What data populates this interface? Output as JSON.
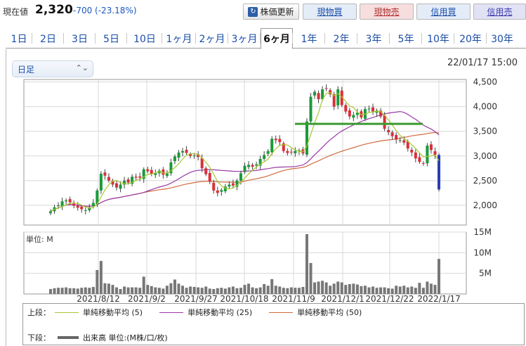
{
  "header": {
    "price_label": "現在値",
    "price_value": "2,320",
    "price_change": "-700 (-23.18%)",
    "update_button": "株価更新",
    "buy_button": "現物買",
    "sell_button": "現物売",
    "margin_buy_button": "信用買",
    "margin_sell_button": "信用売"
  },
  "tabs": [
    "1日",
    "2日",
    "3日",
    "5日",
    "10日",
    "1ヶ月",
    "2ヶ月",
    "3ヶ月",
    "6ヶ月",
    "1年",
    "2年",
    "3年",
    "5年",
    "10年",
    "20年",
    "30年"
  ],
  "active_tab": "6ヶ月",
  "period_select": {
    "value": "日足"
  },
  "date_stamp": "22/01/17 15:00",
  "colors": {
    "up": "#1a9a3a",
    "down": "#d9303a",
    "ma5": "#a8c830",
    "ma25": "#9a3aa8",
    "ma50": "#d06a40",
    "support": "#3a9a30",
    "volume": "#777777"
  },
  "legend": {
    "upper_label": "上段：",
    "ma5": "単純移動平均 (5)",
    "ma25": "単純移動平均 (25)",
    "ma50": "単純移動平均 (50)",
    "lower_label": "下段：",
    "volume": "出来高 単位:(M株/口/枚)"
  },
  "chart_data": {
    "type": "candlestick",
    "x_labels": [
      "2021/8/12",
      "2021/9/2",
      "2021/9/27",
      "2021/10/18",
      "2021/11/9",
      "2021/12/1",
      "2021/12/22",
      "2022/1/17"
    ],
    "price_axis": {
      "ticks": [
        "4,500",
        "4,000",
        "3,500",
        "3,000",
        "2,500",
        "2,000"
      ],
      "ylim": [
        1600,
        4550
      ]
    },
    "volume_axis": {
      "unit_label": "単位: M",
      "ticks": [
        "15M",
        "10M",
        "5M"
      ],
      "ylim": [
        0,
        15
      ]
    },
    "support_line": {
      "price": 3650
    },
    "close": [
      1880,
      1960,
      2000,
      2080,
      2100,
      2060,
      1990,
      1950,
      1920,
      1900,
      1960,
      2050,
      2300,
      2640,
      2600,
      2500,
      2420,
      2360,
      2420,
      2500,
      2460,
      2580,
      2560,
      2560,
      2730,
      2690,
      2640,
      2650,
      2700,
      2620,
      2650,
      2870,
      2990,
      3070,
      3100,
      3060,
      3000,
      3010,
      2980,
      2750,
      2630,
      2480,
      2300,
      2250,
      2310,
      2380,
      2420,
      2400,
      2500,
      2650,
      2800,
      2820,
      2780,
      2830,
      2940,
      3020,
      3100,
      3350,
      3320,
      3280,
      3100,
      3060,
      3080,
      3100,
      3110,
      3050,
      3700,
      4200,
      4300,
      4150,
      4350,
      4360,
      4250,
      4000,
      4350,
      4030,
      3900,
      3800,
      3830,
      3880,
      3780,
      3950,
      3960,
      3900,
      3920,
      3800,
      3550,
      3480,
      3400,
      3330,
      3320,
      3270,
      3150,
      3070,
      2950,
      2880,
      2850,
      3210,
      3120,
      3020,
      2320
    ],
    "volume": [
      1.2,
      1.4,
      1.5,
      1.5,
      1.6,
      1.4,
      1.4,
      1.3,
      1.5,
      1.6,
      1.5,
      1.7,
      5.8,
      8.0,
      2.6,
      2.5,
      2.2,
      1.6,
      1.2,
      1.8,
      1.6,
      1.6,
      1.6,
      1.5,
      4.2,
      2.2,
      1.9,
      1.6,
      1.5,
      1.3,
      2.0,
      2.6,
      3.5,
      2.5,
      2.0,
      1.5,
      1.8,
      1.7,
      1.6,
      1.5,
      1.8,
      1.3,
      1.2,
      1.4,
      1.5,
      1.3,
      1.6,
      1.8,
      1.4,
      1.5,
      2.2,
      2.5,
      1.6,
      1.4,
      1.6,
      2.4,
      2.0,
      3.6,
      2.0,
      1.8,
      1.5,
      1.4,
      1.6,
      1.5,
      1.5,
      1.7,
      14.5,
      7.5,
      2.8,
      3.0,
      3.2,
      2.8,
      2.0,
      2.5,
      3.0,
      2.8,
      2.2,
      2.4,
      2.5,
      2.3,
      1.9,
      2.0,
      1.6,
      1.8,
      1.5,
      1.6,
      1.6,
      1.4,
      1.3,
      2.0,
      1.8,
      2.0,
      1.6,
      1.8,
      1.5,
      2.7,
      1.5,
      3.0,
      2.5,
      2.2,
      8.5
    ]
  }
}
